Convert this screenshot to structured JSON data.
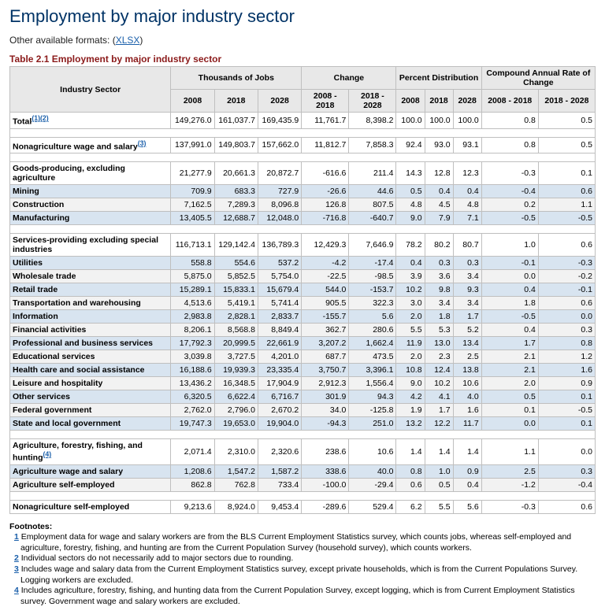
{
  "heading": "Employment by major industry sector",
  "formats_label": "Other available formats: (",
  "formats_link": "XLSX",
  "formats_close": ")",
  "table_title": "Table 2.1 Employment by major industry sector",
  "col_groups": {
    "sector": "Industry Sector",
    "thousands": "Thousands of Jobs",
    "change": "Change",
    "pct": "Percent Distribution",
    "carc": "Compound Annual Rate of Change"
  },
  "years": {
    "a": "2008",
    "b": "2018",
    "c": "2028"
  },
  "ranges": {
    "ab": "2008 - 2018",
    "bc": "2018 - 2028"
  },
  "rows": [
    {
      "type": "data",
      "style": "",
      "label": "Total",
      "refs": [
        "1",
        "2"
      ],
      "v": [
        "149,276.0",
        "161,037.7",
        "169,435.9",
        "11,761.7",
        "8,398.2",
        "100.0",
        "100.0",
        "100.0",
        "0.8",
        "0.5"
      ]
    },
    {
      "type": "spacer"
    },
    {
      "type": "data",
      "style": "",
      "label": "Nonagriculture wage and salary",
      "refs": [
        "3"
      ],
      "v": [
        "137,991.0",
        "149,803.7",
        "157,662.0",
        "11,812.7",
        "7,858.3",
        "92.4",
        "93.0",
        "93.1",
        "0.8",
        "0.5"
      ]
    },
    {
      "type": "spacer"
    },
    {
      "type": "data",
      "style": "",
      "label": "Goods-producing, excluding agriculture",
      "refs": [],
      "v": [
        "21,277.9",
        "20,661.3",
        "20,872.7",
        "-616.6",
        "211.4",
        "14.3",
        "12.8",
        "12.3",
        "-0.3",
        "0.1"
      ]
    },
    {
      "type": "data",
      "style": "blue",
      "label": "Mining",
      "refs": [],
      "v": [
        "709.9",
        "683.3",
        "727.9",
        "-26.6",
        "44.6",
        "0.5",
        "0.4",
        "0.4",
        "-0.4",
        "0.6"
      ]
    },
    {
      "type": "data",
      "style": "grey",
      "label": "Construction",
      "refs": [],
      "v": [
        "7,162.5",
        "7,289.3",
        "8,096.8",
        "126.8",
        "807.5",
        "4.8",
        "4.5",
        "4.8",
        "0.2",
        "1.1"
      ]
    },
    {
      "type": "data",
      "style": "blue",
      "label": "Manufacturing",
      "refs": [],
      "v": [
        "13,405.5",
        "12,688.7",
        "12,048.0",
        "-716.8",
        "-640.7",
        "9.0",
        "7.9",
        "7.1",
        "-0.5",
        "-0.5"
      ]
    },
    {
      "type": "spacer"
    },
    {
      "type": "data",
      "style": "",
      "label": "Services-providing excluding special industries",
      "refs": [],
      "v": [
        "116,713.1",
        "129,142.4",
        "136,789.3",
        "12,429.3",
        "7,646.9",
        "78.2",
        "80.2",
        "80.7",
        "1.0",
        "0.6"
      ]
    },
    {
      "type": "data",
      "style": "blue",
      "label": "Utilities",
      "refs": [],
      "v": [
        "558.8",
        "554.6",
        "537.2",
        "-4.2",
        "-17.4",
        "0.4",
        "0.3",
        "0.3",
        "-0.1",
        "-0.3"
      ]
    },
    {
      "type": "data",
      "style": "grey",
      "label": "Wholesale trade",
      "refs": [],
      "v": [
        "5,875.0",
        "5,852.5",
        "5,754.0",
        "-22.5",
        "-98.5",
        "3.9",
        "3.6",
        "3.4",
        "0.0",
        "-0.2"
      ]
    },
    {
      "type": "data",
      "style": "blue",
      "label": "Retail trade",
      "refs": [],
      "v": [
        "15,289.1",
        "15,833.1",
        "15,679.4",
        "544.0",
        "-153.7",
        "10.2",
        "9.8",
        "9.3",
        "0.4",
        "-0.1"
      ]
    },
    {
      "type": "data",
      "style": "grey",
      "label": "Transportation and warehousing",
      "refs": [],
      "v": [
        "4,513.6",
        "5,419.1",
        "5,741.4",
        "905.5",
        "322.3",
        "3.0",
        "3.4",
        "3.4",
        "1.8",
        "0.6"
      ]
    },
    {
      "type": "data",
      "style": "blue",
      "label": "Information",
      "refs": [],
      "v": [
        "2,983.8",
        "2,828.1",
        "2,833.7",
        "-155.7",
        "5.6",
        "2.0",
        "1.8",
        "1.7",
        "-0.5",
        "0.0"
      ]
    },
    {
      "type": "data",
      "style": "grey",
      "label": "Financial activities",
      "refs": [],
      "v": [
        "8,206.1",
        "8,568.8",
        "8,849.4",
        "362.7",
        "280.6",
        "5.5",
        "5.3",
        "5.2",
        "0.4",
        "0.3"
      ]
    },
    {
      "type": "data",
      "style": "blue",
      "label": "Professional and business services",
      "refs": [],
      "v": [
        "17,792.3",
        "20,999.5",
        "22,661.9",
        "3,207.2",
        "1,662.4",
        "11.9",
        "13.0",
        "13.4",
        "1.7",
        "0.8"
      ]
    },
    {
      "type": "data",
      "style": "grey",
      "label": "Educational services",
      "refs": [],
      "v": [
        "3,039.8",
        "3,727.5",
        "4,201.0",
        "687.7",
        "473.5",
        "2.0",
        "2.3",
        "2.5",
        "2.1",
        "1.2"
      ]
    },
    {
      "type": "data",
      "style": "blue",
      "label": "Health care and social assistance",
      "refs": [],
      "v": [
        "16,188.6",
        "19,939.3",
        "23,335.4",
        "3,750.7",
        "3,396.1",
        "10.8",
        "12.4",
        "13.8",
        "2.1",
        "1.6"
      ]
    },
    {
      "type": "data",
      "style": "grey",
      "label": "Leisure and hospitality",
      "refs": [],
      "v": [
        "13,436.2",
        "16,348.5",
        "17,904.9",
        "2,912.3",
        "1,556.4",
        "9.0",
        "10.2",
        "10.6",
        "2.0",
        "0.9"
      ]
    },
    {
      "type": "data",
      "style": "blue",
      "label": "Other services",
      "refs": [],
      "v": [
        "6,320.5",
        "6,622.4",
        "6,716.7",
        "301.9",
        "94.3",
        "4.2",
        "4.1",
        "4.0",
        "0.5",
        "0.1"
      ]
    },
    {
      "type": "data",
      "style": "grey",
      "label": "Federal government",
      "refs": [],
      "v": [
        "2,762.0",
        "2,796.0",
        "2,670.2",
        "34.0",
        "-125.8",
        "1.9",
        "1.7",
        "1.6",
        "0.1",
        "-0.5"
      ]
    },
    {
      "type": "data",
      "style": "blue",
      "label": "State and local government",
      "refs": [],
      "v": [
        "19,747.3",
        "19,653.0",
        "19,904.0",
        "-94.3",
        "251.0",
        "13.2",
        "12.2",
        "11.7",
        "0.0",
        "0.1"
      ]
    },
    {
      "type": "spacer"
    },
    {
      "type": "data",
      "style": "",
      "label": "Agriculture, forestry, fishing, and hunting",
      "refs": [
        "4"
      ],
      "v": [
        "2,071.4",
        "2,310.0",
        "2,320.6",
        "238.6",
        "10.6",
        "1.4",
        "1.4",
        "1.4",
        "1.1",
        "0.0"
      ]
    },
    {
      "type": "data",
      "style": "blue",
      "label": "Agriculture wage and salary",
      "refs": [],
      "v": [
        "1,208.6",
        "1,547.2",
        "1,587.2",
        "338.6",
        "40.0",
        "0.8",
        "1.0",
        "0.9",
        "2.5",
        "0.3"
      ]
    },
    {
      "type": "data",
      "style": "grey",
      "label": "Agriculture self-employed",
      "refs": [],
      "v": [
        "862.8",
        "762.8",
        "733.4",
        "-100.0",
        "-29.4",
        "0.6",
        "0.5",
        "0.4",
        "-1.2",
        "-0.4"
      ]
    },
    {
      "type": "spacer"
    },
    {
      "type": "data",
      "style": "",
      "label": "Nonagriculture self-employed",
      "refs": [],
      "v": [
        "9,213.6",
        "8,924.0",
        "9,453.4",
        "-289.6",
        "529.4",
        "6.2",
        "5.5",
        "5.6",
        "-0.3",
        "0.6"
      ]
    }
  ],
  "footnotes": {
    "title": "Footnotes:",
    "items": [
      {
        "n": "1",
        "text": "Employment data for wage and salary workers are from the BLS Current Employment Statistics survey, which counts jobs, whereas self-employed and agriculture, forestry, fishing, and hunting are from the Current Population Survey (household survey), which counts workers."
      },
      {
        "n": "2",
        "text": "Individual sectors do not necessarily add to major sectors due to rounding."
      },
      {
        "n": "3",
        "text": "Includes wage and salary data from the Current Employment Statistics survey, except private households, which is from the Current Populations Survey. Logging workers are excluded."
      },
      {
        "n": "4",
        "text": "Includes agriculture, forestry, fishing, and hunting data from the Current Population Survey, except logging, which is from Current Employment Statistics survey. Government wage and salary workers are excluded."
      }
    ]
  }
}
